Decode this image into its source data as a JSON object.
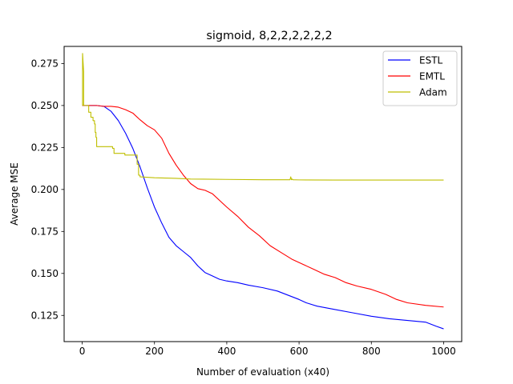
{
  "chart_data": {
    "type": "line",
    "title": "sigmoid, 8,2,2,2,2,2,2",
    "xlabel": "Number of evaluation (x40)",
    "ylabel": "Average MSE",
    "xlim": [
      -50,
      1050
    ],
    "ylim": [
      0.1094,
      0.2852
    ],
    "xticks": [
      0,
      200,
      400,
      600,
      800,
      1000
    ],
    "xtick_labels": [
      "0",
      "200",
      "400",
      "600",
      "800",
      "1000"
    ],
    "yticks": [
      0.125,
      0.15,
      0.175,
      0.2,
      0.225,
      0.25,
      0.275
    ],
    "ytick_labels": [
      "0.125",
      "0.150",
      "0.175",
      "0.200",
      "0.225",
      "0.250",
      "0.275"
    ],
    "grid": false,
    "legend_position": "upper right",
    "series": [
      {
        "name": "ESTL",
        "color": "#0000ff",
        "x": [
          0,
          20,
          40,
          60,
          80,
          100,
          120,
          140,
          160,
          180,
          200,
          220,
          240,
          260,
          280,
          300,
          320,
          340,
          360,
          380,
          400,
          430,
          460,
          500,
          540,
          570,
          600,
          620,
          650,
          700,
          750,
          800,
          850,
          900,
          950,
          980,
          1000
        ],
        "y": [
          0.25,
          0.25,
          0.25,
          0.2495,
          0.2465,
          0.241,
          0.2335,
          0.2245,
          0.2135,
          0.201,
          0.1895,
          0.18,
          0.1715,
          0.1665,
          0.163,
          0.1595,
          0.1545,
          0.1505,
          0.1485,
          0.1465,
          0.1455,
          0.1445,
          0.143,
          0.1415,
          0.1395,
          0.137,
          0.1345,
          0.1325,
          0.1305,
          0.1285,
          0.1265,
          0.1245,
          0.123,
          0.122,
          0.121,
          0.1185,
          0.117
        ]
      },
      {
        "name": "EMTL",
        "color": "#ff0000",
        "x": [
          0,
          40,
          60,
          80,
          100,
          120,
          140,
          160,
          180,
          200,
          220,
          240,
          260,
          280,
          300,
          320,
          340,
          360,
          380,
          400,
          430,
          460,
          490,
          520,
          550,
          580,
          610,
          640,
          670,
          700,
          730,
          760,
          800,
          840,
          870,
          900,
          950,
          1000
        ],
        "y": [
          0.25,
          0.25,
          0.2495,
          0.2495,
          0.249,
          0.2475,
          0.2455,
          0.2415,
          0.238,
          0.2355,
          0.2305,
          0.2215,
          0.2145,
          0.2085,
          0.2035,
          0.2005,
          0.1995,
          0.1975,
          0.1935,
          0.1895,
          0.184,
          0.1775,
          0.1725,
          0.1665,
          0.1625,
          0.1585,
          0.1555,
          0.1525,
          0.1495,
          0.1475,
          0.1445,
          0.1425,
          0.1405,
          0.1375,
          0.1345,
          0.1325,
          0.131,
          0.13
        ]
      },
      {
        "name": "Adam",
        "color": "#bfbf00",
        "x": [
          0,
          1,
          1,
          4,
          4,
          18,
          18,
          24,
          24,
          30,
          30,
          34,
          34,
          36,
          36,
          38,
          38,
          40,
          40,
          84,
          84,
          88,
          88,
          118,
          118,
          152,
          152,
          156,
          156,
          160,
          160,
          200,
          260,
          300,
          400,
          500,
          575,
          577,
          579,
          581,
          583,
          600,
          700,
          800,
          900,
          1000
        ],
        "y": [
          0.25,
          0.25,
          0.281,
          0.27,
          0.25,
          0.25,
          0.246,
          0.246,
          0.243,
          0.243,
          0.241,
          0.241,
          0.239,
          0.239,
          0.234,
          0.234,
          0.231,
          0.231,
          0.2255,
          0.2255,
          0.2245,
          0.2245,
          0.2215,
          0.2215,
          0.2205,
          0.2205,
          0.215,
          0.215,
          0.2085,
          0.2085,
          0.2075,
          0.207,
          0.2066,
          0.2062,
          0.206,
          0.2058,
          0.2058,
          0.2075,
          0.2058,
          0.2062,
          0.2058,
          0.2057,
          0.2056,
          0.2056,
          0.2056,
          0.2056
        ]
      }
    ]
  }
}
